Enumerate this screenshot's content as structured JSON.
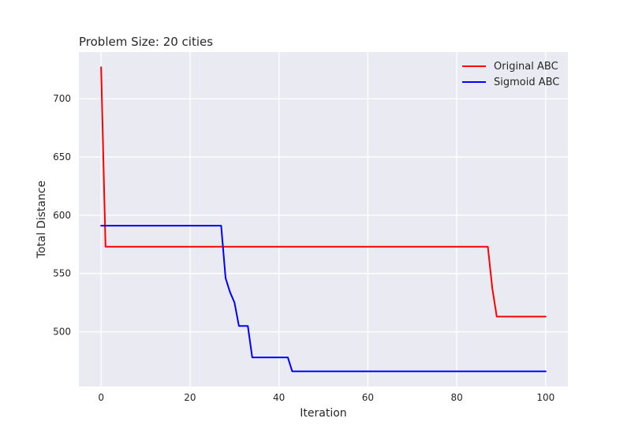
{
  "chart_data": {
    "type": "line",
    "title": "Problem Size: 20 cities",
    "xlabel": "Iteration",
    "ylabel": "Total Distance",
    "xlim": [
      -5,
      105
    ],
    "ylim": [
      453,
      740
    ],
    "xticks": [
      0,
      20,
      40,
      60,
      80,
      100
    ],
    "yticks": [
      500,
      550,
      600,
      650,
      700
    ],
    "grid": true,
    "legend_position": "top-right",
    "series": [
      {
        "name": "Original ABC",
        "color": "#ff0000",
        "x": [
          0,
          1,
          2,
          87,
          88,
          89,
          100
        ],
        "y": [
          727,
          573,
          573,
          573,
          537,
          513,
          513
        ]
      },
      {
        "name": "Sigmoid ABC",
        "color": "#0000ff",
        "x": [
          0,
          27,
          28,
          29,
          30,
          31,
          32,
          33,
          34,
          42,
          43,
          44,
          100
        ],
        "y": [
          591,
          591,
          546,
          534,
          525,
          505,
          505,
          505,
          478,
          478,
          466,
          466,
          466
        ]
      }
    ]
  }
}
